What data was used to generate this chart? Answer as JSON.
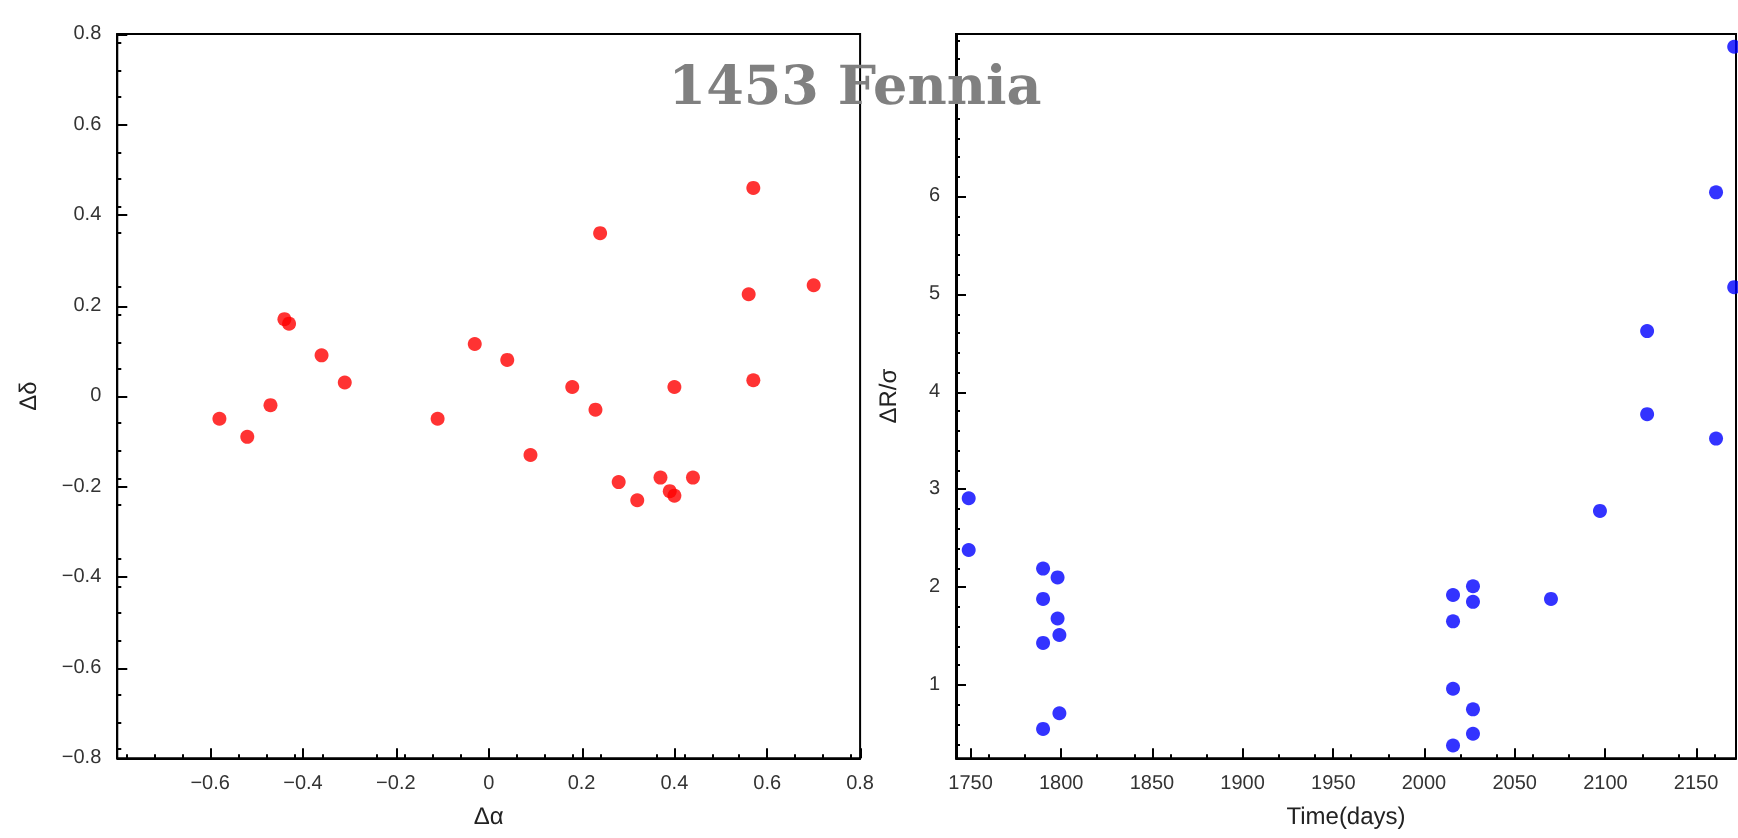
{
  "chart_data": [
    {
      "type": "scatter",
      "title": "1453 Fennia",
      "xlabel": "Δα",
      "ylabel": "Δδ",
      "marker": "circle",
      "xlim": [
        -0.8,
        0.8
      ],
      "xticks": [
        -0.6,
        -0.4,
        -0.2,
        0,
        0.2,
        0.4,
        0.6,
        0.8
      ],
      "ylim": [
        -0.8,
        0.8
      ],
      "yticks": [
        -0.8,
        -0.6,
        -0.4,
        -0.2,
        0,
        0.2,
        0.4,
        0.6,
        0.8
      ],
      "series": [
        {
          "color": "#ff0000",
          "x": [
            -0.58,
            -0.52,
            -0.47,
            -0.44,
            -0.43,
            -0.36,
            -0.31,
            -0.11,
            -0.03,
            0.04,
            0.09,
            0.18,
            0.23,
            0.24,
            0.28,
            0.32,
            0.37,
            0.39,
            0.4,
            0.4,
            0.44,
            0.56,
            0.57,
            0.57,
            0.7
          ],
          "values": [
            -0.05,
            -0.09,
            -0.02,
            0.17,
            0.16,
            0.09,
            0.03,
            -0.05,
            0.115,
            0.08,
            -0.13,
            0.02,
            -0.03,
            0.36,
            -0.19,
            -0.23,
            -0.18,
            -0.21,
            0.02,
            -0.22,
            -0.18,
            0.225,
            0.46,
            0.035,
            0.245
          ]
        }
      ]
    },
    {
      "type": "scatter",
      "xlabel": "Time(days)",
      "ylabel": "ΔR/σ",
      "marker": "circle",
      "xlim": [
        1742,
        2172
      ],
      "xticks": [
        1750,
        1800,
        1850,
        1900,
        1950,
        2000,
        2050,
        2100,
        2150
      ],
      "ylim": [
        0.25,
        7.66
      ],
      "yticks": [
        1,
        2,
        3,
        4,
        5,
        6
      ],
      "series": [
        {
          "color": "#0000ff",
          "x": [
            1749,
            1749,
            1790,
            1790,
            1790,
            1790,
            1798,
            1798,
            1799,
            1799,
            2016,
            2016,
            2016,
            2016,
            2027,
            2027,
            2027,
            2027,
            2070,
            2097,
            2123,
            2123,
            2161,
            2161,
            2171,
            2171
          ],
          "values": [
            2.91,
            2.38,
            2.19,
            1.88,
            1.43,
            0.55,
            2.1,
            1.68,
            1.51,
            0.71,
            1.92,
            1.65,
            0.96,
            0.38,
            2.01,
            1.85,
            0.75,
            0.5,
            1.88,
            2.78,
            4.62,
            3.77,
            6.04,
            3.52,
            7.53,
            5.07
          ]
        }
      ]
    }
  ]
}
